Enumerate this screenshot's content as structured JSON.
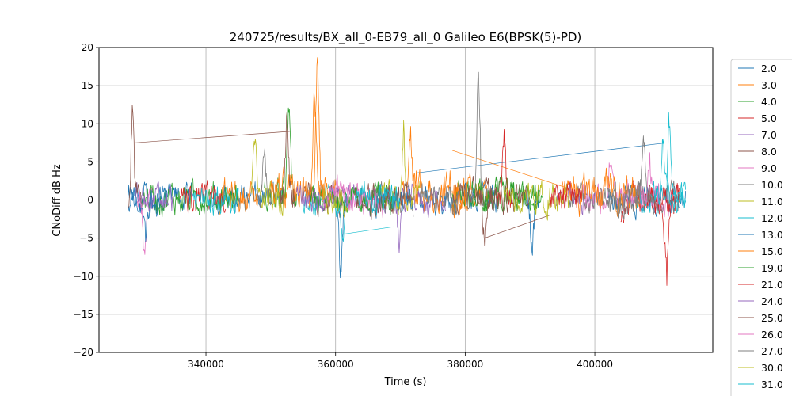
{
  "chart_data": {
    "type": "line",
    "title": "240725/results/BX_all_0-EB79_all_0 Galileo E6(BPSK(5)-PD)",
    "xlabel": "Time (s)",
    "ylabel": "CNoDiff dB Hz",
    "xlim": [
      323500,
      418200
    ],
    "ylim": [
      -20,
      20
    ],
    "xticks": [
      340000,
      360000,
      380000,
      400000
    ],
    "xtick_labels": [
      "340000",
      "360000",
      "380000",
      "400000"
    ],
    "yticks": [
      -20,
      -15,
      -10,
      -5,
      0,
      5,
      10,
      15,
      20
    ],
    "ytick_labels": [
      "−20",
      "−15",
      "−10",
      "−5",
      "0",
      "5",
      "10",
      "15",
      "20"
    ],
    "grid": true,
    "legend_placement": "outside-right",
    "series": [
      {
        "name": "2.0",
        "color": "#1f77b4",
        "segments": [
          [
            328000,
            338000
          ],
          [
            341000,
            352000
          ],
          [
            373000,
            385000
          ],
          [
            402000,
            414000
          ]
        ],
        "base": 0.2,
        "amp": 1.2,
        "spikes": [
          [
            360800,
            -9.5
          ],
          [
            390300,
            -6.5
          ]
        ],
        "links": [
          [
            372000,
            3.5,
            411000,
            7.5
          ]
        ]
      },
      {
        "name": "3.0",
        "color": "#ff7f0e",
        "segments": [
          [
            342000,
            348000
          ],
          [
            378000,
            384000
          ]
        ],
        "base": 0.5,
        "amp": 1.4,
        "spikes": [
          [
            357200,
            17.5
          ]
        ],
        "links": [
          [
            378000,
            6.5,
            396000,
            1.5
          ]
        ]
      },
      {
        "name": "4.0",
        "color": "#2ca02c",
        "segments": [
          [
            330000,
            345000
          ],
          [
            349000,
            352000
          ],
          [
            378000,
            391000
          ]
        ],
        "base": 0.3,
        "amp": 1.3,
        "spikes": [
          [
            352800,
            12.5
          ]
        ],
        "links": []
      },
      {
        "name": "5.0",
        "color": "#d62728",
        "segments": [
          [
            336000,
            343000
          ],
          [
            404000,
            413000
          ]
        ],
        "base": 0.0,
        "amp": 1.2,
        "spikes": [
          [
            411000,
            -12.5
          ],
          [
            404000,
            -5.0
          ]
        ],
        "links": []
      },
      {
        "name": "7.0",
        "color": "#9467bd",
        "segments": [
          [
            329000,
            335000
          ],
          [
            362000,
            377000
          ],
          [
            394000,
            400000
          ]
        ],
        "base": 0.0,
        "amp": 1.2,
        "spikes": [
          [
            369800,
            -5.5
          ]
        ],
        "links": []
      },
      {
        "name": "8.0",
        "color": "#8c564b",
        "segments": [
          [
            328000,
            330000
          ],
          [
            355000,
            361000
          ],
          [
            378000,
            384000
          ]
        ],
        "base": 0.5,
        "amp": 1.4,
        "spikes": [
          [
            328700,
            13.5
          ]
        ],
        "links": [
          [
            329000,
            7.5,
            353000,
            9.0
          ],
          [
            383000,
            -5.0,
            393000,
            -2.0
          ]
        ]
      },
      {
        "name": "9.0",
        "color": "#e377c2",
        "segments": [
          [
            360000,
            368000
          ],
          [
            398000,
            412000
          ]
        ],
        "base": 0.3,
        "amp": 1.3,
        "spikes": [
          [
            402500,
            6.5
          ],
          [
            330500,
            -7.0
          ]
        ],
        "links": []
      },
      {
        "name": "10.0",
        "color": "#7f7f7f",
        "segments": [
          [
            366000,
            372000
          ],
          [
            380000,
            385000
          ],
          [
            396000,
            413000
          ]
        ],
        "base": 0.2,
        "amp": 1.3,
        "spikes": [
          [
            382000,
            18.0
          ],
          [
            349000,
            6.0
          ]
        ],
        "links": []
      },
      {
        "name": "11.0",
        "color": "#bcbd22",
        "segments": [
          [
            347000,
            352000
          ],
          [
            367000,
            373000
          ],
          [
            391000,
            396000
          ]
        ],
        "base": 0.3,
        "amp": 1.3,
        "spikes": [
          [
            370500,
            10.5
          ],
          [
            347500,
            8.5
          ]
        ],
        "links": []
      },
      {
        "name": "12.0",
        "color": "#17becf",
        "segments": [
          [
            338000,
            345000
          ],
          [
            355000,
            362000
          ],
          [
            406000,
            414000
          ]
        ],
        "base": 0.0,
        "amp": 1.2,
        "spikes": [
          [
            411500,
            11.5
          ],
          [
            361000,
            -5.0
          ]
        ],
        "links": [
          [
            361000,
            -4.5,
            369000,
            -3.5
          ]
        ]
      },
      {
        "name": "13.0",
        "color": "#1f77b4",
        "segments": [
          [
            328000,
            334000
          ],
          [
            366000,
            372000
          ]
        ],
        "base": 0.0,
        "amp": 1.2,
        "spikes": [
          [
            330800,
            -5.5
          ]
        ],
        "links": []
      },
      {
        "name": "15.0",
        "color": "#ff7f0e",
        "segments": [
          [
            350000,
            360000
          ],
          [
            372000,
            381000
          ],
          [
            395000,
            407000
          ]
        ],
        "base": 1.0,
        "amp": 1.6,
        "spikes": [
          [
            356800,
            14.5
          ],
          [
            371500,
            8.5
          ]
        ],
        "links": []
      },
      {
        "name": "19.0",
        "color": "#2ca02c",
        "segments": [
          [
            356000,
            369000
          ],
          [
            381000,
            392000
          ]
        ],
        "base": 0.3,
        "amp": 1.2,
        "spikes": [],
        "links": []
      },
      {
        "name": "21.0",
        "color": "#d62728",
        "segments": [
          [
            393000,
            398000
          ],
          [
            408000,
            413000
          ]
        ],
        "base": 0.2,
        "amp": 1.2,
        "spikes": [
          [
            386000,
            8.5
          ]
        ],
        "links": []
      },
      {
        "name": "24.0",
        "color": "#9467bd",
        "segments": [
          [
            354000,
            362000
          ]
        ],
        "base": 0.2,
        "amp": 1.1,
        "spikes": [],
        "links": []
      },
      {
        "name": "25.0",
        "color": "#8c564b",
        "segments": [
          [
            363000,
            372000
          ],
          [
            384000,
            390000
          ]
        ],
        "base": 0.3,
        "amp": 1.3,
        "spikes": [
          [
            383000,
            -5.5
          ],
          [
            352500,
            10.5
          ]
        ],
        "links": []
      },
      {
        "name": "26.0",
        "color": "#e377c2",
        "segments": [
          [
            358000,
            364000
          ],
          [
            405000,
            410000
          ]
        ],
        "base": 0.2,
        "amp": 1.2,
        "spikes": [
          [
            408500,
            5.0
          ]
        ],
        "links": []
      },
      {
        "name": "27.0",
        "color": "#7f7f7f",
        "segments": [
          [
            373000,
            379000
          ],
          [
            402000,
            407000
          ]
        ],
        "base": 0.3,
        "amp": 1.3,
        "spikes": [
          [
            407500,
            8.0
          ]
        ],
        "links": []
      },
      {
        "name": "30.0",
        "color": "#bcbd22",
        "segments": [
          [
            358000,
            362000
          ],
          [
            386000,
            391000
          ]
        ],
        "base": 0.2,
        "amp": 1.1,
        "spikes": [],
        "links": []
      },
      {
        "name": "31.0",
        "color": "#17becf",
        "segments": [
          [
            363000,
            370000
          ],
          [
            409000,
            414000
          ]
        ],
        "base": 0.2,
        "amp": 1.2,
        "spikes": [
          [
            410500,
            9.5
          ]
        ],
        "links": []
      }
    ]
  }
}
